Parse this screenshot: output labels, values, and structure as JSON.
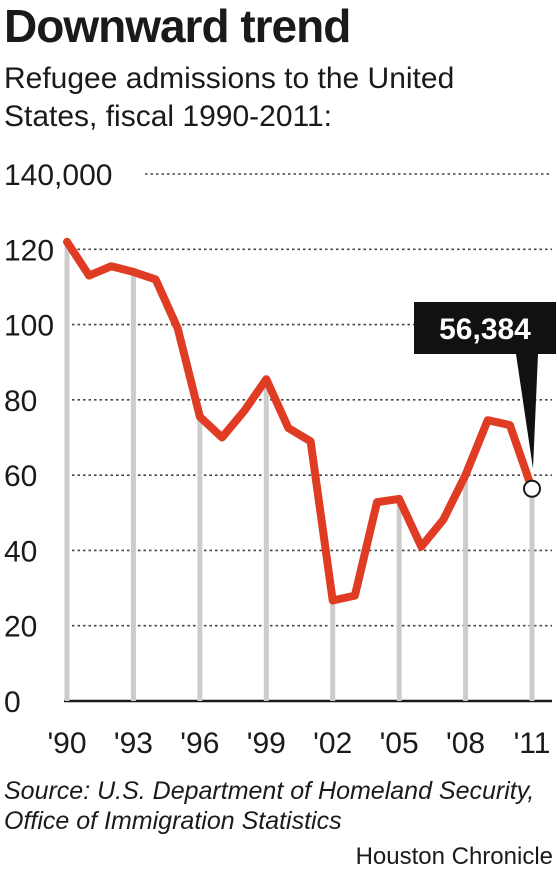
{
  "title": "Downward trend",
  "subtitle": "Refugee admissions to the United States, fiscal 1990-2011:",
  "source": "Source: U.S. Department of Homeland Security, Office of Immigration Statistics",
  "credit": "Houston Chronicle",
  "colors": {
    "line": "#e03c24",
    "grid": "#444444",
    "guide": "#cccccc",
    "callout_bg": "#111111"
  },
  "chart_data": {
    "type": "line",
    "title": "Downward trend",
    "subtitle": "Refugee admissions to the United States, fiscal 1990-2011:",
    "x": [
      1990,
      1991,
      1992,
      1993,
      1994,
      1995,
      1996,
      1997,
      1998,
      1999,
      2000,
      2001,
      2002,
      2003,
      2004,
      2005,
      2006,
      2007,
      2008,
      2009,
      2010,
      2011
    ],
    "values": [
      122000,
      113000,
      115500,
      114000,
      112000,
      99000,
      75500,
      70000,
      77000,
      85500,
      72500,
      69000,
      26700,
      28000,
      52800,
      53700,
      41000,
      48200,
      60100,
      74600,
      73300,
      56384
    ],
    "ylim": [
      0,
      140000
    ],
    "y_ticks": [
      0,
      20,
      40,
      60,
      80,
      100,
      120,
      140000
    ],
    "y_tick_labels": [
      "0",
      "20",
      "40",
      "60",
      "80",
      "100",
      "120",
      "140,000"
    ],
    "x_ticks": [
      1990,
      1993,
      1996,
      1999,
      2002,
      2005,
      2008,
      2011
    ],
    "x_tick_labels": [
      "'90",
      "'93",
      "'96",
      "'99",
      "'02",
      "'05",
      "'08",
      "'11"
    ],
    "grid": true,
    "annotation": {
      "x": 2011,
      "label": "56,384"
    }
  }
}
